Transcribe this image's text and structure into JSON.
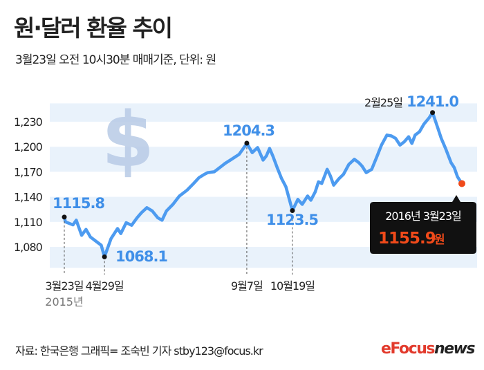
{
  "title": "원·달러 환율 추이",
  "subtitle": "3월23일 오전 10시30분 매매기준, 단위: 원",
  "footer": "자료: 한국은행  그래픽= 조숙빈 기자  stby123@focus.kr",
  "logo": {
    "mark": "e",
    "text": "Focus",
    "suffix": "news"
  },
  "colors": {
    "line": "#4d9bf0",
    "label": "#3f8fe8",
    "band": "#e9f2fb",
    "current": "#f04a1a",
    "callout_bg": "#111111"
  },
  "chart_data": {
    "type": "line",
    "title": "원·달러 환율 추이",
    "ylabel": "원",
    "ylim": [
      1045,
      1255
    ],
    "yticks": [
      1080,
      1110,
      1140,
      1170,
      1200,
      1230
    ],
    "ytick_labels": [
      "1,080",
      "1,110",
      "1,140",
      "1,170",
      "1,200",
      "1,230"
    ],
    "grid": "alternating horizontal bands",
    "points": [
      [
        "2015-03-23",
        1115.8
      ],
      [
        "2015-03-24",
        1110
      ],
      [
        "2015-03-31",
        1106.5
      ],
      [
        "2015-04-03",
        1112
      ],
      [
        "2015-04-08",
        1094
      ],
      [
        "2015-04-12",
        1101
      ],
      [
        "2015-04-16",
        1092
      ],
      [
        "2015-04-22",
        1086
      ],
      [
        "2015-04-26",
        1082
      ],
      [
        "2015-04-29",
        1068.1
      ],
      [
        "2015-05-05",
        1090
      ],
      [
        "2015-05-11",
        1102
      ],
      [
        "2015-05-14",
        1096
      ],
      [
        "2015-05-19",
        1109
      ],
      [
        "2015-05-24",
        1106
      ],
      [
        "2015-05-29",
        1115
      ],
      [
        "2015-06-02",
        1121
      ],
      [
        "2015-06-07",
        1127
      ],
      [
        "2015-06-12",
        1123
      ],
      [
        "2015-06-17",
        1115
      ],
      [
        "2015-06-21",
        1112
      ],
      [
        "2015-06-25",
        1123
      ],
      [
        "2015-07-01",
        1131
      ],
      [
        "2015-07-07",
        1141
      ],
      [
        "2015-07-14",
        1148
      ],
      [
        "2015-07-20",
        1156
      ],
      [
        "2015-07-25",
        1163
      ],
      [
        "2015-07-30",
        1167
      ],
      [
        "2015-08-02",
        1169
      ],
      [
        "2015-08-08",
        1170
      ],
      [
        "2015-08-15",
        1177
      ],
      [
        "2015-08-18",
        1180
      ],
      [
        "2015-08-24",
        1185
      ],
      [
        "2015-08-31",
        1191
      ],
      [
        "2015-09-06",
        1202
      ],
      [
        "2015-09-07",
        1204.3
      ],
      [
        "2015-09-12",
        1193
      ],
      [
        "2015-09-17",
        1199
      ],
      [
        "2015-09-22",
        1184
      ],
      [
        "2015-09-25",
        1189
      ],
      [
        "2015-09-28",
        1198
      ],
      [
        "2015-10-01",
        1189
      ],
      [
        "2015-10-05",
        1175
      ],
      [
        "2015-10-09",
        1162
      ],
      [
        "2015-10-13",
        1152
      ],
      [
        "2015-10-17",
        1133
      ],
      [
        "2015-10-19",
        1123.5
      ],
      [
        "2015-10-24",
        1137
      ],
      [
        "2015-10-28",
        1131
      ],
      [
        "2015-11-02",
        1141
      ],
      [
        "2015-11-05",
        1136
      ],
      [
        "2015-11-09",
        1146
      ],
      [
        "2015-11-12",
        1158
      ],
      [
        "2015-11-15",
        1156
      ],
      [
        "2015-11-20",
        1173
      ],
      [
        "2015-11-23",
        1165
      ],
      [
        "2015-11-26",
        1154
      ],
      [
        "2015-12-01",
        1162
      ],
      [
        "2015-12-05",
        1167
      ],
      [
        "2015-12-10",
        1179
      ],
      [
        "2015-12-15",
        1185
      ],
      [
        "2015-12-19",
        1181
      ],
      [
        "2015-12-22",
        1177
      ],
      [
        "2015-12-26",
        1169
      ],
      [
        "2015-12-31",
        1173
      ],
      [
        "2016-01-05",
        1189
      ],
      [
        "2016-01-09",
        1202
      ],
      [
        "2016-01-14",
        1214
      ],
      [
        "2016-01-18",
        1213
      ],
      [
        "2016-01-22",
        1210
      ],
      [
        "2016-01-26",
        1202
      ],
      [
        "2016-01-30",
        1206
      ],
      [
        "2016-02-03",
        1212
      ],
      [
        "2016-02-06",
        1204
      ],
      [
        "2016-02-09",
        1214
      ],
      [
        "2016-02-13",
        1218
      ],
      [
        "2016-02-17",
        1227
      ],
      [
        "2016-02-22",
        1235
      ],
      [
        "2016-02-25",
        1241.0
      ],
      [
        "2016-03-01",
        1222
      ],
      [
        "2016-03-04",
        1210
      ],
      [
        "2016-03-08",
        1198
      ],
      [
        "2016-03-13",
        1181
      ],
      [
        "2016-03-16",
        1175
      ],
      [
        "2016-03-19",
        1164
      ],
      [
        "2016-03-23",
        1155.9
      ]
    ],
    "annotations": [
      {
        "date": "2015-03-23",
        "value": 1115.8,
        "label": "1115.8",
        "date_label": "3월23일",
        "year_label": "2015년"
      },
      {
        "date": "2015-04-29",
        "value": 1068.1,
        "label": "1068.1",
        "date_label": "4월29일"
      },
      {
        "date": "2015-09-07",
        "value": 1204.3,
        "label": "1204.3",
        "date_label": "9월7일"
      },
      {
        "date": "2015-10-19",
        "value": 1123.5,
        "label": "1123.5",
        "date_label": "10월19일"
      },
      {
        "date": "2016-02-25",
        "value": 1241.0,
        "label": "1241.0",
        "date_label": "2월25일"
      }
    ],
    "current": {
      "date": "2016-03-23",
      "value": 1155.9,
      "date_label": "2016년 3월23일",
      "value_label": "1155.9",
      "unit": "원"
    }
  }
}
